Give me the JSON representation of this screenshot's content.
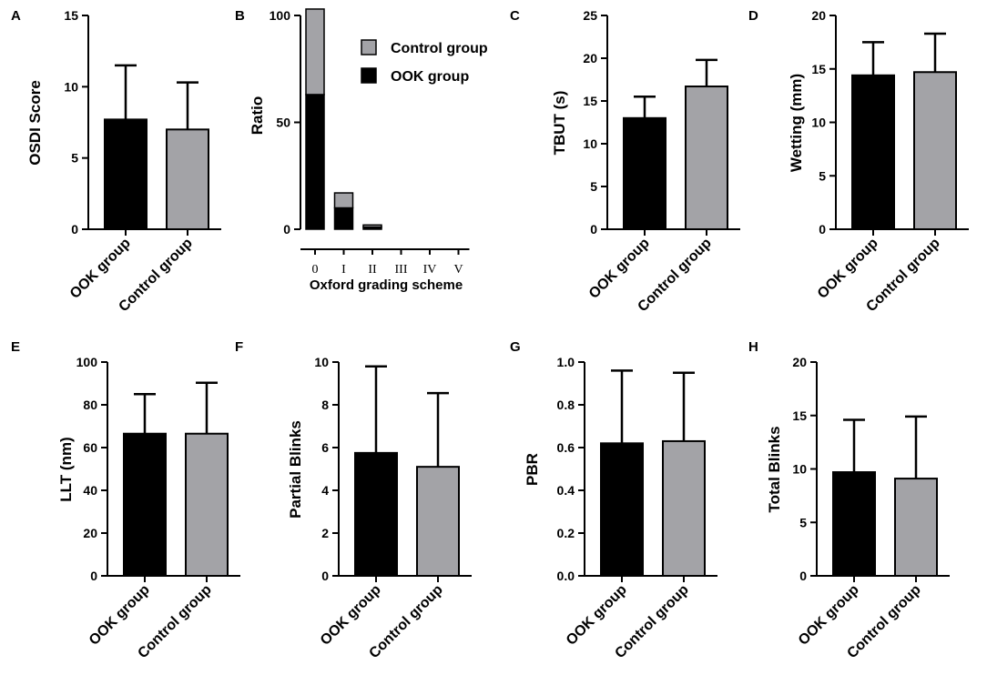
{
  "figure": {
    "colors": {
      "ook": "#000000",
      "control": "#a3a3a7",
      "axis": "#000000"
    }
  },
  "chart_data": [
    {
      "id": "A",
      "panel": "A",
      "type": "bar",
      "ylabel": "OSDI Score",
      "xlabel": "",
      "ylim": [
        0,
        15
      ],
      "yticks": [
        0,
        5,
        10,
        15
      ],
      "ytick_labels": [
        "0",
        "5",
        "10",
        "15"
      ],
      "categories": [
        "OOK group",
        "Control group"
      ],
      "values": [
        7.7,
        7.0
      ],
      "errors": [
        3.8,
        3.3
      ],
      "colors": [
        "#000000",
        "#a3a3a7"
      ]
    },
    {
      "id": "B",
      "panel": "B",
      "type": "bar",
      "stacked": true,
      "ylabel": "Ratio",
      "xlabel": "Oxford grading scheme",
      "ylim": [
        0,
        100
      ],
      "yticks": [
        0,
        50,
        100
      ],
      "ytick_labels": [
        "0",
        "50",
        "100"
      ],
      "categories": [
        "0",
        "I",
        "II",
        "III",
        "IV",
        "V"
      ],
      "series": [
        {
          "name": "OOK group",
          "color": "#000000",
          "values": [
            63,
            10,
            1,
            0,
            0,
            0
          ]
        },
        {
          "name": "Control group",
          "color": "#a3a3a7",
          "values": [
            40,
            7,
            1,
            0,
            0,
            0
          ]
        }
      ],
      "legend": [
        "Control group",
        "OOK group"
      ],
      "legend_position": "top-right"
    },
    {
      "id": "C",
      "panel": "C",
      "type": "bar",
      "ylabel": "TBUT (s)",
      "xlabel": "",
      "ylim": [
        0,
        25
      ],
      "yticks": [
        0,
        5,
        10,
        15,
        20,
        25
      ],
      "ytick_labels": [
        "0",
        "5",
        "10",
        "15",
        "20",
        "25"
      ],
      "categories": [
        "OOK group",
        "Control group"
      ],
      "values": [
        13.0,
        16.7
      ],
      "errors": [
        2.5,
        3.1
      ],
      "colors": [
        "#000000",
        "#a3a3a7"
      ]
    },
    {
      "id": "D",
      "panel": "D",
      "type": "bar",
      "ylabel": "Wetting (mm)",
      "xlabel": "",
      "ylim": [
        0,
        20
      ],
      "yticks": [
        0,
        5,
        10,
        15,
        20
      ],
      "ytick_labels": [
        "0",
        "5",
        "10",
        "15",
        "20"
      ],
      "categories": [
        "OOK group",
        "Control group"
      ],
      "values": [
        14.4,
        14.7
      ],
      "errors": [
        3.1,
        3.6
      ],
      "colors": [
        "#000000",
        "#a3a3a7"
      ]
    },
    {
      "id": "E",
      "panel": "E",
      "type": "bar",
      "ylabel": "LLT (nm)",
      "xlabel": "",
      "ylim": [
        0,
        100
      ],
      "yticks": [
        0,
        20,
        40,
        60,
        80,
        100
      ],
      "ytick_labels": [
        "0",
        "20",
        "40",
        "60",
        "80",
        "100"
      ],
      "categories": [
        "OOK group",
        "Control group"
      ],
      "values": [
        66.5,
        66.5
      ],
      "errors": [
        18.5,
        23.8
      ],
      "colors": [
        "#000000",
        "#a3a3a7"
      ]
    },
    {
      "id": "F",
      "panel": "F",
      "type": "bar",
      "ylabel": "Partial Blinks",
      "xlabel": "",
      "ylim": [
        0,
        10
      ],
      "yticks": [
        0,
        2,
        4,
        6,
        8,
        10
      ],
      "ytick_labels": [
        "0",
        "2",
        "4",
        "6",
        "8",
        "10"
      ],
      "categories": [
        "OOK group",
        "Control group"
      ],
      "values": [
        5.75,
        5.1
      ],
      "errors": [
        4.05,
        3.45
      ],
      "colors": [
        "#000000",
        "#a3a3a7"
      ]
    },
    {
      "id": "G",
      "panel": "G",
      "type": "bar",
      "ylabel": "PBR",
      "xlabel": "",
      "ylim": [
        0,
        1
      ],
      "yticks": [
        0,
        0.2,
        0.4,
        0.6,
        0.8,
        1.0
      ],
      "ytick_labels": [
        "0.0",
        "0.2",
        "0.4",
        "0.6",
        "0.8",
        "1.0"
      ],
      "categories": [
        "OOK group",
        "Control group"
      ],
      "values": [
        0.62,
        0.63
      ],
      "errors": [
        0.34,
        0.32
      ],
      "colors": [
        "#000000",
        "#a3a3a7"
      ]
    },
    {
      "id": "H",
      "panel": "H",
      "type": "bar",
      "ylabel": "Total Blinks",
      "xlabel": "",
      "ylim": [
        0,
        20
      ],
      "yticks": [
        0,
        5,
        10,
        15,
        20
      ],
      "ytick_labels": [
        "0",
        "5",
        "10",
        "15",
        "20"
      ],
      "categories": [
        "OOK group",
        "Control group"
      ],
      "values": [
        9.7,
        9.1
      ],
      "errors": [
        4.9,
        5.8
      ],
      "colors": [
        "#000000",
        "#a3a3a7"
      ]
    }
  ]
}
